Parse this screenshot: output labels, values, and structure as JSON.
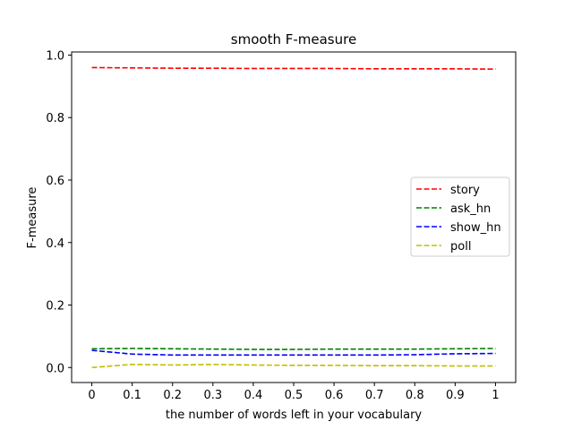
{
  "chart_data": {
    "type": "line",
    "title": "smooth F-measure",
    "xlabel": "the number of words left in your vocabulary",
    "ylabel": "F-measure",
    "x": [
      0,
      0.1,
      0.2,
      0.3,
      0.4,
      0.5,
      0.6,
      0.7,
      0.8,
      0.9,
      1
    ],
    "xticks": [
      "0",
      "0.1",
      "0.2",
      "0.3",
      "0.4",
      "0.5",
      "0.6",
      "0.7",
      "0.8",
      "0.9",
      "1"
    ],
    "yticks": [
      "0.0",
      "0.2",
      "0.4",
      "0.6",
      "0.8",
      "1.0"
    ],
    "xlim": [
      -0.05,
      1.05
    ],
    "ylim": [
      -0.048,
      1.01
    ],
    "grid": false,
    "legend_position": "center-right",
    "series": [
      {
        "name": "story",
        "color": "#ff0000",
        "values": [
          0.96,
          0.959,
          0.958,
          0.958,
          0.957,
          0.957,
          0.957,
          0.956,
          0.956,
          0.956,
          0.955
        ]
      },
      {
        "name": "ask_hn",
        "color": "#008000",
        "values": [
          0.06,
          0.061,
          0.06,
          0.059,
          0.058,
          0.058,
          0.059,
          0.059,
          0.059,
          0.06,
          0.061
        ]
      },
      {
        "name": "show_hn",
        "color": "#0000ff",
        "values": [
          0.055,
          0.043,
          0.04,
          0.04,
          0.04,
          0.04,
          0.04,
          0.04,
          0.041,
          0.044,
          0.045
        ]
      },
      {
        "name": "poll",
        "color": "#bfbf00",
        "values": [
          0.0,
          0.01,
          0.008,
          0.01,
          0.008,
          0.007,
          0.007,
          0.006,
          0.006,
          0.005,
          0.005
        ]
      }
    ]
  }
}
